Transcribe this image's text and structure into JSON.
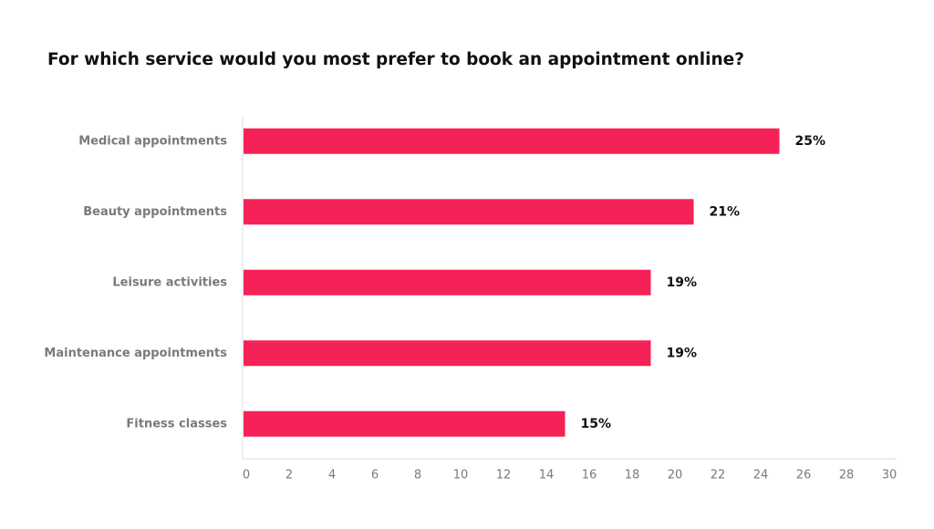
{
  "chart_data": {
    "type": "bar",
    "orientation": "horizontal",
    "title": "For which service would you most prefer to book an appointment online?",
    "categories": [
      "Medical appointments",
      "Beauty appointments",
      "Leisure activities",
      "Maintenance appointments",
      "Fitness classes"
    ],
    "values": [
      25,
      21,
      19,
      19,
      15
    ],
    "value_labels": [
      "25%",
      "21%",
      "19%",
      "19%",
      "15%"
    ],
    "color": "#f52257",
    "xlim": [
      0,
      30
    ],
    "xticks": [
      0,
      2,
      4,
      6,
      8,
      10,
      12,
      14,
      16,
      18,
      20,
      22,
      24,
      26,
      28,
      30
    ]
  }
}
